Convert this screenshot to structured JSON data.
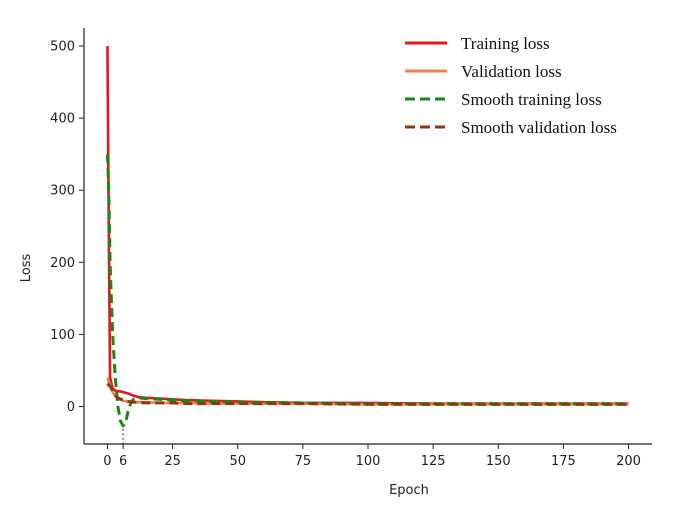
{
  "chart_data": {
    "type": "line",
    "title": "",
    "xlabel": "Epoch",
    "ylabel": "Loss",
    "xlim": [
      -9,
      209
    ],
    "ylim": [
      -52,
      525
    ],
    "xticks": [
      0,
      6,
      25,
      50,
      75,
      100,
      125,
      150,
      175,
      200
    ],
    "yticks": [
      0,
      100,
      200,
      300,
      400,
      500
    ],
    "legend_position": "top-right",
    "annotations": [
      {
        "type": "dotted-vertical-line",
        "x": 6,
        "y_from": -52,
        "y_to": -28
      }
    ],
    "series": [
      {
        "name": "Training loss",
        "color": "#e8141c",
        "style": "solid",
        "x": [
          0,
          0.5,
          1,
          2,
          3,
          4,
          5,
          6,
          7,
          8,
          10,
          12,
          15,
          20,
          25,
          30,
          40,
          50,
          60,
          75,
          100,
          125,
          150,
          175,
          200
        ],
        "y": [
          500,
          250,
          40,
          25,
          22,
          21,
          21,
          20,
          19,
          18,
          15,
          13,
          12,
          11,
          10,
          9,
          8,
          7,
          6,
          5,
          5,
          4,
          4,
          4,
          4
        ]
      },
      {
        "name": "Validation loss",
        "color": "#f4814a",
        "style": "solid",
        "x": [
          0,
          1,
          2,
          3,
          4,
          6,
          8,
          10,
          15,
          20,
          25,
          30,
          40,
          50,
          75,
          100,
          125,
          150,
          175,
          200
        ],
        "y": [
          40,
          30,
          20,
          14,
          11,
          8,
          7,
          6,
          6,
          5,
          5,
          5,
          4,
          4,
          4,
          3,
          3,
          3,
          3,
          3
        ]
      },
      {
        "name": "Smooth training loss",
        "color": "#148a14",
        "style": "dashed",
        "x": [
          0,
          0.5,
          1,
          2,
          3,
          4,
          5,
          6,
          7,
          8,
          9,
          10,
          12,
          15,
          20,
          25,
          30,
          40,
          50,
          75,
          100,
          125,
          150,
          175,
          200
        ],
        "y": [
          350,
          300,
          200,
          100,
          40,
          0,
          -20,
          -27,
          -22,
          -5,
          5,
          10,
          12,
          11,
          10,
          9,
          8,
          7,
          6,
          5,
          4,
          4,
          4,
          4,
          4
        ]
      },
      {
        "name": "Smooth validation loss",
        "color": "#8b3a0f",
        "style": "dashed",
        "x": [
          0,
          1,
          2,
          3,
          4,
          6,
          8,
          10,
          15,
          20,
          25,
          30,
          40,
          50,
          75,
          100,
          125,
          150,
          175,
          200
        ],
        "y": [
          32,
          28,
          22,
          16,
          12,
          9,
          7,
          6,
          5,
          5,
          5,
          4,
          4,
          4,
          4,
          3,
          3,
          3,
          3,
          3
        ]
      }
    ]
  }
}
